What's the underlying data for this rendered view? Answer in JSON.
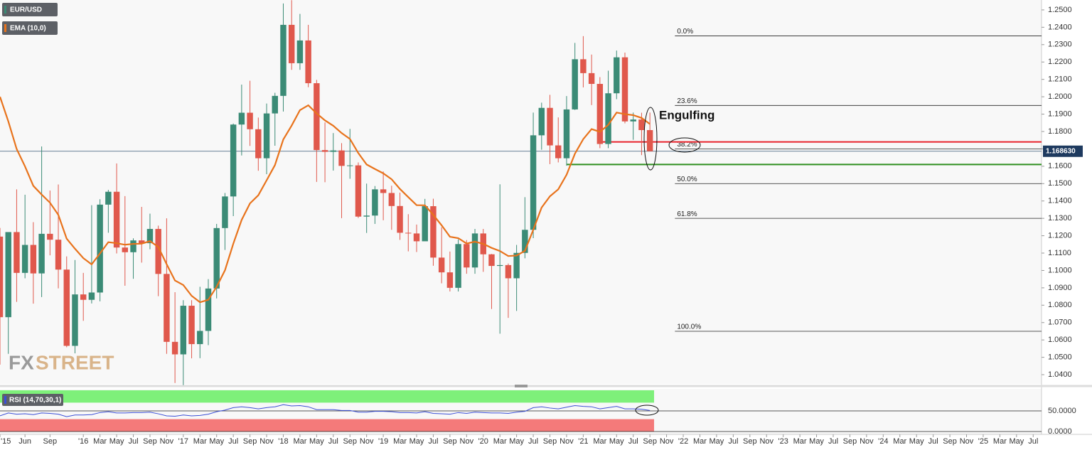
{
  "chart_data": {
    "type": "candlestick",
    "legend": [
      "EUR/USD",
      "EMA (10,0)"
    ],
    "watermark": [
      "FX",
      "STREET"
    ],
    "up_color": "#3b8b76",
    "down_color": "#e0584c",
    "ema_color": "#e8731c",
    "x": [
      -10,
      -9,
      -8,
      -7,
      -6,
      -5,
      -4,
      -3,
      -2,
      -1,
      0,
      1,
      2,
      3,
      4,
      5,
      6,
      7,
      8,
      9,
      10,
      11,
      12,
      13,
      14,
      15,
      16,
      17,
      18,
      19,
      20,
      21,
      22,
      23,
      24,
      25,
      26,
      27,
      28,
      29,
      30,
      31,
      32,
      33,
      34,
      35,
      36,
      37,
      38,
      39,
      40,
      41,
      42,
      43,
      44,
      45,
      46,
      47,
      48,
      49,
      50,
      51,
      52,
      53,
      54,
      55,
      56,
      57,
      58,
      59,
      60,
      61,
      62,
      63,
      64,
      65,
      66,
      67,
      68
    ],
    "open": [
      1.1195,
      1.0731,
      1.1221,
      1.0986,
      1.1147,
      1.0983,
      1.1211,
      1.1177,
      1.1005,
      1.0566,
      1.0862,
      1.0831,
      1.0873,
      1.1379,
      1.1453,
      1.1132,
      1.1105,
      1.1173,
      1.1157,
      1.1239,
      1.098,
      1.0589,
      1.0517,
      1.0797,
      1.0576,
      1.0652,
      1.0896,
      1.1244,
      1.1426,
      1.184,
      1.1908,
      1.1813,
      1.1646,
      1.1904,
      1.2005,
      1.2414,
      1.2193,
      1.2324,
      1.2078,
      1.1693,
      1.1683,
      1.1691,
      1.1602,
      1.1605,
      1.131,
      1.1316,
      1.1467,
      1.1446,
      1.1371,
      1.1217,
      1.1213,
      1.1168,
      1.137,
      1.1074,
      1.0989,
      1.09,
      1.1152,
      1.1017,
      1.1213,
      1.1093,
      1.1026,
      1.1031,
      1.0955,
      1.1101,
      1.1234,
      1.1778,
      1.1936,
      1.172,
      1.1646,
      1.1927,
      1.2216,
      1.2136,
      1.2074,
      1.1728,
      1.202,
      1.2227,
      1.1858,
      1.1869,
      1.1808
    ],
    "high": [
      1.1245,
      1.1214,
      1.1467,
      1.1436,
      1.1278,
      1.1714,
      1.146,
      1.1495,
      1.1081,
      1.106,
      1.0986,
      1.1376,
      1.141,
      1.1464,
      1.1616,
      1.1428,
      1.1185,
      1.1366,
      1.1327,
      1.1258,
      1.13,
      1.0875,
      1.0829,
      1.0829,
      1.0906,
      1.095,
      1.1268,
      1.1446,
      1.1846,
      1.207,
      1.2092,
      1.188,
      1.1961,
      1.2023,
      1.2537,
      1.2556,
      1.2477,
      1.2414,
      1.2097,
      1.1852,
      1.1791,
      1.1733,
      1.1815,
      1.1622,
      1.15,
      1.1486,
      1.157,
      1.1488,
      1.1448,
      1.1324,
      1.1264,
      1.1412,
      1.1413,
      1.1249,
      1.1109,
      1.1179,
      1.1175,
      1.1239,
      1.1239,
      1.1095,
      1.1496,
      1.104,
      1.1147,
      1.1422,
      1.1909,
      1.1966,
      1.2011,
      1.1881,
      1.2004,
      1.231,
      1.2349,
      1.2243,
      1.2113,
      1.215,
      1.2266,
      1.2254,
      1.1909,
      1.1908,
      1.1909
    ],
    "low": [
      1.0458,
      1.052,
      1.0819,
      1.0955,
      1.0809,
      1.0847,
      1.1087,
      1.0897,
      1.0558,
      1.0523,
      1.071,
      1.081,
      1.0822,
      1.1217,
      1.1098,
      1.0912,
      1.0952,
      1.1045,
      1.1122,
      1.0852,
      1.052,
      1.0352,
      1.034,
      1.0494,
      1.0495,
      1.057,
      1.0839,
      1.1118,
      1.1313,
      1.1662,
      1.1717,
      1.1574,
      1.1554,
      1.1718,
      1.1915,
      1.2155,
      1.2155,
      1.2055,
      1.151,
      1.1508,
      1.1575,
      1.1301,
      1.1528,
      1.1302,
      1.1216,
      1.1268,
      1.1289,
      1.1234,
      1.1176,
      1.111,
      1.1106,
      1.1181,
      1.1027,
      1.0926,
      1.0879,
      1.0879,
      1.0981,
      1.0981,
      1.0992,
      1.0778,
      1.0636,
      1.0727,
      1.0767,
      1.107,
      1.1186,
      1.1695,
      1.1612,
      1.1622,
      1.1603,
      1.1924,
      1.2054,
      1.1952,
      1.1704,
      1.1704,
      1.1986,
      1.1847,
      1.1752,
      1.1664,
      1.1686
    ],
    "close": [
      1.0731,
      1.1221,
      1.0986,
      1.1147,
      1.0983,
      1.1211,
      1.1177,
      1.1005,
      1.0566,
      1.0862,
      1.0831,
      1.0873,
      1.1379,
      1.1453,
      1.1132,
      1.1105,
      1.1173,
      1.1157,
      1.1239,
      1.098,
      1.0589,
      1.0517,
      1.0797,
      1.0576,
      1.0652,
      1.0896,
      1.1244,
      1.1426,
      1.184,
      1.1908,
      1.1813,
      1.1646,
      1.1904,
      1.2005,
      1.2414,
      1.2193,
      1.2324,
      1.2078,
      1.1693,
      1.1683,
      1.1691,
      1.1602,
      1.1605,
      1.131,
      1.1316,
      1.1467,
      1.1446,
      1.1371,
      1.1217,
      1.1213,
      1.1168,
      1.137,
      1.1074,
      1.0989,
      1.09,
      1.1152,
      1.1017,
      1.1213,
      1.1093,
      1.1026,
      1.1031,
      1.0955,
      1.1101,
      1.1234,
      1.1778,
      1.1936,
      1.172,
      1.1646,
      1.1927,
      1.2216,
      1.2136,
      1.2074,
      1.1728,
      1.202,
      1.2227,
      1.1858,
      1.1869,
      1.1808,
      1.1686
    ],
    "ema": [
      1.2,
      1.1858,
      1.1699,
      1.1599,
      1.1487,
      1.1437,
      1.139,
      1.132,
      1.1183,
      1.1125,
      1.1071,
      1.1035,
      1.1098,
      1.1163,
      1.1157,
      1.1148,
      1.1153,
      1.1154,
      1.1169,
      1.1135,
      1.1036,
      1.0942,
      1.0916,
      1.0854,
      1.0817,
      1.0831,
      1.0906,
      1.1001,
      1.1154,
      1.1291,
      1.1386,
      1.1433,
      1.1519,
      1.1607,
      1.1754,
      1.1834,
      1.1923,
      1.1951,
      1.1904,
      1.1864,
      1.1833,
      1.1791,
      1.1757,
      1.1676,
      1.161,
      1.1584,
      1.1559,
      1.1525,
      1.1469,
      1.1422,
      1.1376,
      1.1375,
      1.132,
      1.126,
      1.1194,
      1.1186,
      1.1155,
      1.1166,
      1.1153,
      1.113,
      1.1112,
      1.1083,
      1.1086,
      1.1113,
      1.1234,
      1.1362,
      1.1427,
      1.1467,
      1.1551,
      1.1672,
      1.1756,
      1.1814,
      1.1798,
      1.1838,
      1.1909,
      1.19,
      1.1894,
      1.1878,
      1.1843
    ],
    "xlim": [
      -10,
      115
    ],
    "ylim": [
      1.0347,
      1.2557
    ],
    "yticks": [
      {
        "value": 1.25,
        "label": "1.2500"
      },
      {
        "value": 1.24,
        "label": "1.2400"
      },
      {
        "value": 1.23,
        "label": "1.2300"
      },
      {
        "value": 1.22,
        "label": "1.2200"
      },
      {
        "value": 1.21,
        "label": "1.2100"
      },
      {
        "value": 1.2,
        "label": "1.2000"
      },
      {
        "value": 1.19,
        "label": "1.1900"
      },
      {
        "value": 1.18,
        "label": "1.1800"
      },
      {
        "value": 1.17,
        "label": "1.1700"
      },
      {
        "value": 1.16,
        "label": "1.1600"
      },
      {
        "value": 1.15,
        "label": "1.1500"
      },
      {
        "value": 1.14,
        "label": "1.1400"
      },
      {
        "value": 1.13,
        "label": "1.1300"
      },
      {
        "value": 1.12,
        "label": "1.1200"
      },
      {
        "value": 1.11,
        "label": "1.1100"
      },
      {
        "value": 1.1,
        "label": "1.1000"
      },
      {
        "value": 1.09,
        "label": "1.0900"
      },
      {
        "value": 1.08,
        "label": "1.0800"
      },
      {
        "value": 1.07,
        "label": "1.0700"
      },
      {
        "value": 1.06,
        "label": "1.0600"
      },
      {
        "value": 1.05,
        "label": "1.0500"
      },
      {
        "value": 1.04,
        "label": "1.0400"
      }
    ],
    "xticks": [
      {
        "value": -10,
        "label": "'15"
      },
      {
        "value": -7,
        "label": "Jun"
      },
      {
        "value": -4,
        "label": "Sep"
      },
      {
        "value": 0,
        "label": "'16"
      },
      {
        "value": 2,
        "label": "Mar"
      },
      {
        "value": 4,
        "label": "May"
      },
      {
        "value": 6,
        "label": "Jul"
      },
      {
        "value": 8,
        "label": "Sep"
      },
      {
        "value": 10,
        "label": "Nov"
      },
      {
        "value": 12,
        "label": "'17"
      },
      {
        "value": 14,
        "label": "Mar"
      },
      {
        "value": 16,
        "label": "May"
      },
      {
        "value": 18,
        "label": "Jul"
      },
      {
        "value": 20,
        "label": "Sep"
      },
      {
        "value": 22,
        "label": "Nov"
      },
      {
        "value": 24,
        "label": "'18"
      },
      {
        "value": 26,
        "label": "Mar"
      },
      {
        "value": 28,
        "label": "May"
      },
      {
        "value": 30,
        "label": "Jul"
      },
      {
        "value": 32,
        "label": "Sep"
      },
      {
        "value": 34,
        "label": "Nov"
      },
      {
        "value": 36,
        "label": "'19"
      },
      {
        "value": 38,
        "label": "Mar"
      },
      {
        "value": 40,
        "label": "May"
      },
      {
        "value": 42,
        "label": "Jul"
      },
      {
        "value": 44,
        "label": "Sep"
      },
      {
        "value": 46,
        "label": "Nov"
      },
      {
        "value": 48,
        "label": "'20"
      },
      {
        "value": 50,
        "label": "Mar"
      },
      {
        "value": 52,
        "label": "May"
      },
      {
        "value": 54,
        "label": "Jul"
      },
      {
        "value": 56,
        "label": "Sep"
      },
      {
        "value": 58,
        "label": "Nov"
      },
      {
        "value": 60,
        "label": "'21"
      },
      {
        "value": 62,
        "label": "Mar"
      },
      {
        "value": 64,
        "label": "May"
      },
      {
        "value": 66,
        "label": "Jul"
      },
      {
        "value": 68,
        "label": "Sep"
      },
      {
        "value": 70,
        "label": "Nov"
      },
      {
        "value": 72,
        "label": "'22"
      },
      {
        "value": 74,
        "label": "Mar"
      },
      {
        "value": 76,
        "label": "May"
      },
      {
        "value": 78,
        "label": "Jul"
      },
      {
        "value": 80,
        "label": "Sep"
      },
      {
        "value": 82,
        "label": "Nov"
      },
      {
        "value": 84,
        "label": "'23"
      },
      {
        "value": 86,
        "label": "Mar"
      },
      {
        "value": 88,
        "label": "May"
      },
      {
        "value": 90,
        "label": "Jul"
      },
      {
        "value": 92,
        "label": "Sep"
      },
      {
        "value": 94,
        "label": "Nov"
      },
      {
        "value": 96,
        "label": "'24"
      },
      {
        "value": 98,
        "label": "Mar"
      },
      {
        "value": 100,
        "label": "May"
      },
      {
        "value": 102,
        "label": "Jul"
      },
      {
        "value": 104,
        "label": "Sep"
      },
      {
        "value": 106,
        "label": "Nov"
      },
      {
        "value": 108,
        "label": "'25"
      },
      {
        "value": 110,
        "label": "Mar"
      },
      {
        "value": 112,
        "label": "May"
      },
      {
        "value": 114,
        "label": "Jul"
      }
    ],
    "current_price": {
      "value": 1.16863,
      "label": "1.168630"
    },
    "fib_levels": {
      "from": 71,
      "levels": [
        {
          "label": "0.0%",
          "value": 1.235
        },
        {
          "label": "23.6%",
          "value": 1.195
        },
        {
          "label": "38.2%",
          "value": 1.17
        },
        {
          "label": "50.0%",
          "value": 1.15
        },
        {
          "label": "61.8%",
          "value": 1.13
        },
        {
          "label": "100.0%",
          "value": 1.065
        }
      ]
    },
    "support_lines": [
      {
        "from": 62,
        "value": 1.174,
        "color": "#e8232b"
      },
      {
        "from": 58,
        "value": 1.161,
        "color": "#2f8f1f"
      }
    ],
    "annotation": "Engulfing",
    "rsi": {
      "label": "RSI (14,70,30,1)",
      "values": [
        38,
        45,
        42,
        43,
        41,
        45,
        44,
        42,
        36,
        40,
        40,
        41,
        46,
        48,
        45,
        45,
        46,
        46,
        47,
        43,
        38,
        37,
        40,
        38,
        39,
        42,
        48,
        52,
        58,
        60,
        58,
        55,
        58,
        60,
        65,
        62,
        63,
        60,
        53,
        53,
        53,
        51,
        51,
        47,
        47,
        49,
        49,
        48,
        46,
        46,
        45,
        48,
        44,
        43,
        42,
        46,
        44,
        47,
        46,
        45,
        45,
        44,
        47,
        49,
        58,
        60,
        57,
        55,
        59,
        63,
        61,
        60,
        55,
        58,
        61,
        55,
        55,
        54,
        51
      ],
      "color": "#3b4fd6",
      "ylim": [
        0,
        100
      ],
      "yticks": [
        {
          "value": 50,
          "label": "50.0000"
        },
        {
          "value": 0,
          "label": "0.0000"
        }
      ],
      "overbought": 70,
      "oversold": 30
    }
  }
}
